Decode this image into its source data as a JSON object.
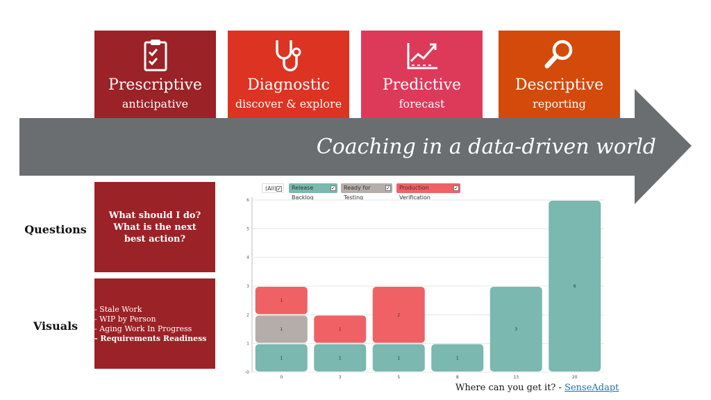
{
  "colors": {
    "prescriptive": "#9b2226",
    "diagnostic": "#dd3322",
    "predictive": "#dd3a5a",
    "descriptive": "#d34a0b",
    "arrow": "#6b6e71",
    "release_backlog": "#7ab8b0",
    "ready_for_testing": "#b5adaa",
    "production_verification": "#f06166"
  },
  "cards": [
    {
      "title": "Prescriptive",
      "subtitle": "anticipative",
      "icon": "clipboard-check-icon"
    },
    {
      "title": "Diagnostic",
      "subtitle": "discover & explore",
      "icon": "stethoscope-icon"
    },
    {
      "title": "Predictive",
      "subtitle": "forecast",
      "icon": "trend-chart-icon"
    },
    {
      "title": "Descriptive",
      "subtitle": "reporting",
      "icon": "magnifier-icon"
    }
  ],
  "arrow_text": "Coaching in a data-driven world",
  "rows": {
    "questions_label": "Questions",
    "visuals_label": "Visuals"
  },
  "questions_text": "What should I do? What is the next best action?",
  "visuals": [
    "- Stale Work",
    "- WIP by Person",
    "- Aging Work In Progress",
    "- Requirements Readiness"
  ],
  "chart_data": {
    "type": "bar",
    "stacked": true,
    "categories": [
      "0",
      "3",
      "5",
      "8",
      "13",
      "20"
    ],
    "legend": [
      {
        "label": "(All)",
        "checked": true
      },
      {
        "label": "Release Backlog",
        "checked": true
      },
      {
        "label": "Ready for Testing",
        "checked": true
      },
      {
        "label": "Production Verification",
        "checked": true
      }
    ],
    "series": [
      {
        "name": "Release Backlog",
        "values": [
          1,
          1,
          1,
          1,
          3,
          6
        ]
      },
      {
        "name": "Ready for Testing",
        "values": [
          1,
          0,
          0,
          0,
          0,
          0
        ]
      },
      {
        "name": "Production Verification",
        "values": [
          1,
          1,
          2,
          0,
          0,
          0
        ]
      }
    ],
    "yticks": [
      "-0",
      "1",
      "2",
      "3",
      "4",
      "5",
      "6"
    ],
    "ylim": [
      0,
      6
    ],
    "grid": true
  },
  "footer": {
    "prefix": "Where can you get it? - ",
    "link": "SenseAdapt"
  }
}
